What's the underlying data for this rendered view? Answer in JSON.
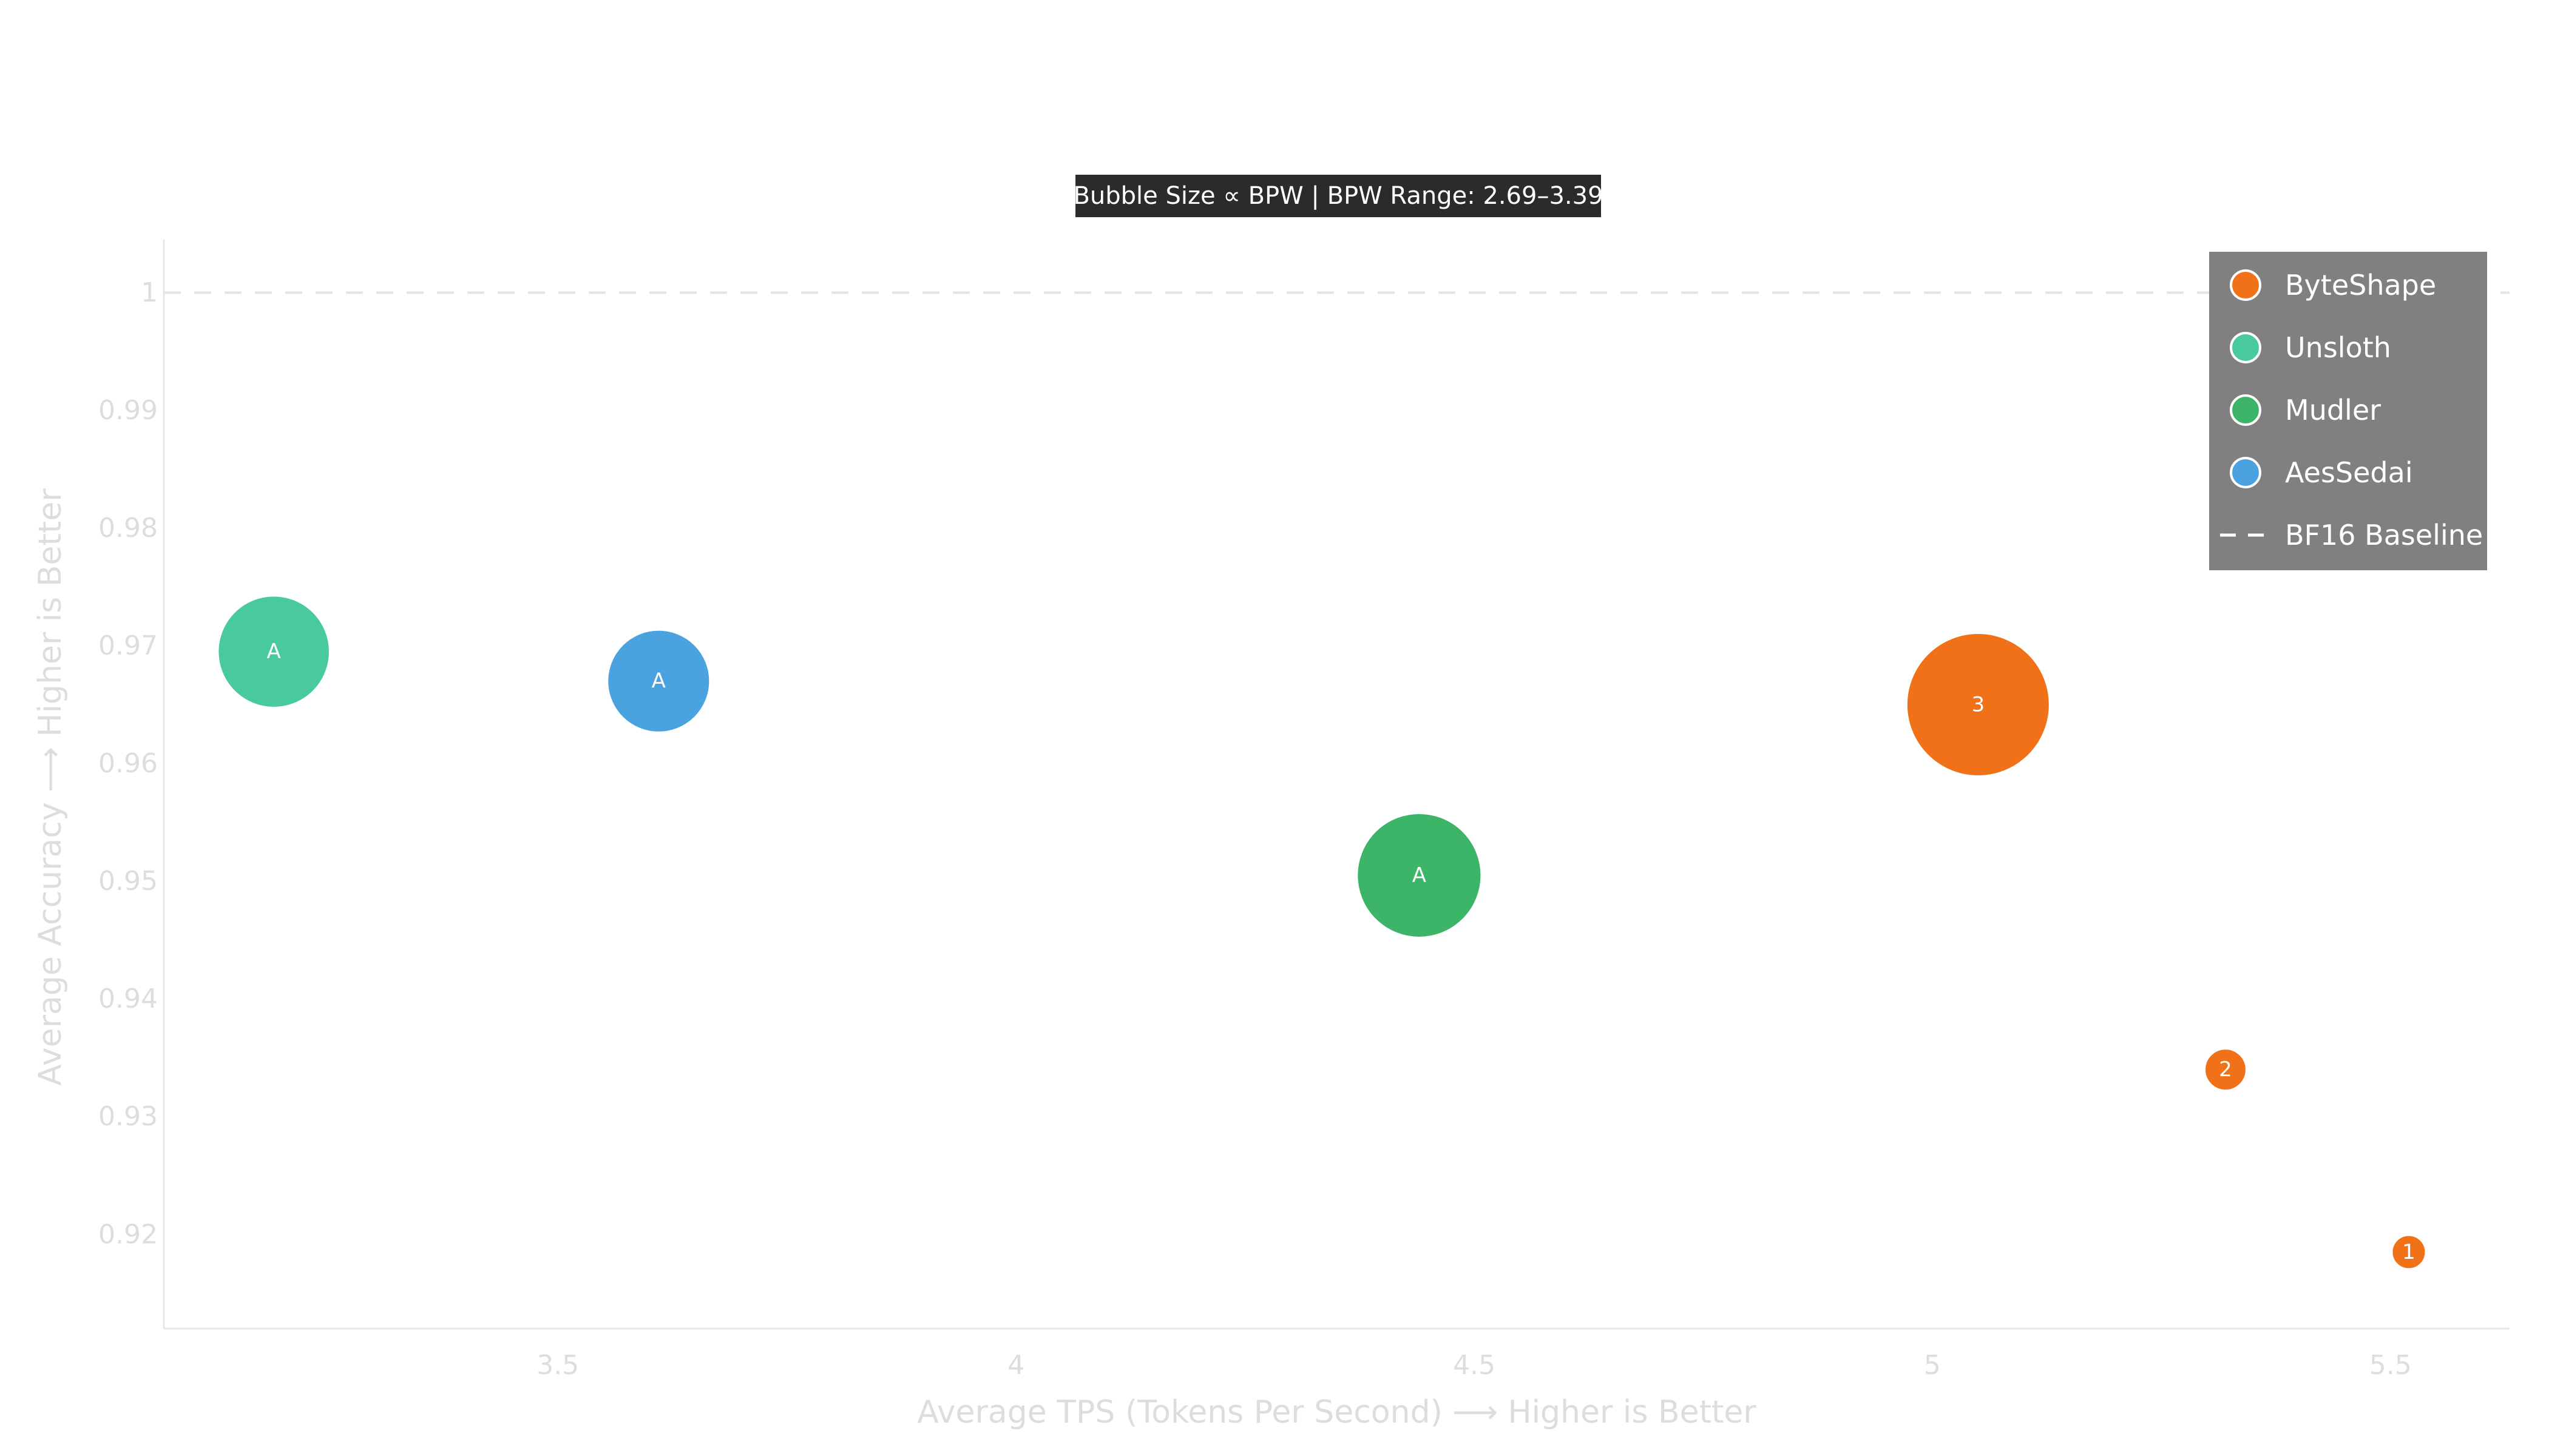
{
  "chart_data": {
    "type": "scatter",
    "subtitle": "Bubble Size ∝ BPW | BPW Range: 2.69–3.39",
    "xlabel": "Average TPS (Tokens Per Second) ⟶ Higher is Better",
    "ylabel": "Average Accuracy ⟶ Higher is Better",
    "xlim": [
      3.07,
      5.63
    ],
    "ylim": [
      0.912,
      1.0045
    ],
    "xticks": [
      3.5,
      4,
      4.5,
      5,
      5.5
    ],
    "xtick_labels": [
      "3.5",
      "4",
      "4.5",
      "5",
      "5.5"
    ],
    "yticks": [
      0.92,
      0.93,
      0.94,
      0.95,
      0.96,
      0.97,
      0.98,
      0.99,
      1
    ],
    "ytick_labels": [
      "0.92",
      "0.93",
      "0.94",
      "0.95",
      "0.96",
      "0.97",
      "0.98",
      "0.99",
      "1"
    ],
    "grid": false,
    "legend_position": "top-right",
    "baseline": {
      "name": "BF16 Baseline",
      "y": 1.0
    },
    "bpw_range": [
      2.69,
      3.39
    ],
    "series": [
      {
        "name": "ByteShape",
        "color": "#f07118",
        "points": [
          {
            "x": 5.52,
            "y": 0.9185,
            "bpw": 2.69,
            "label": "1"
          },
          {
            "x": 5.32,
            "y": 0.934,
            "bpw": 2.74,
            "label": "2"
          },
          {
            "x": 5.05,
            "y": 0.965,
            "bpw": 3.39,
            "label": "3"
          }
        ]
      },
      {
        "name": "Unsloth",
        "color": "#48c9a0",
        "points": [
          {
            "x": 3.19,
            "y": 0.9695,
            "bpw": 3.19,
            "label": "A"
          }
        ]
      },
      {
        "name": "Mudler",
        "color": "#3cb568",
        "points": [
          {
            "x": 4.44,
            "y": 0.9505,
            "bpw": 3.27,
            "label": "A"
          }
        ]
      },
      {
        "name": "AesSedai",
        "color": "#4aa3df",
        "points": [
          {
            "x": 3.61,
            "y": 0.967,
            "bpw": 3.13,
            "label": "A"
          }
        ]
      }
    ]
  }
}
